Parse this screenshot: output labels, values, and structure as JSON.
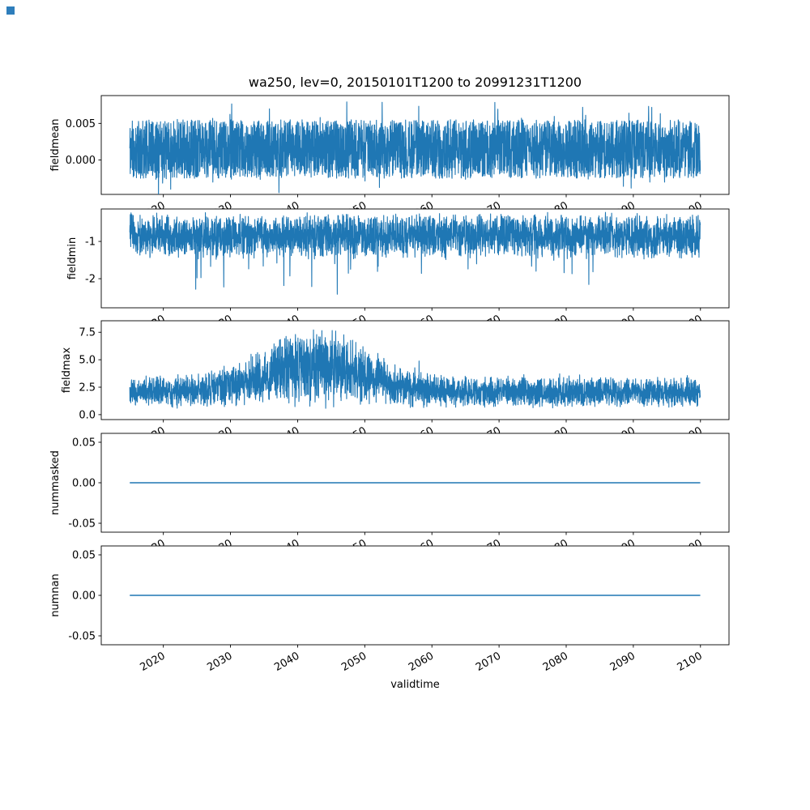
{
  "figure": {
    "title": "wa250, lev=0, 20150101T1200 to 20991231T1200",
    "xlabel": "validtime",
    "line_color": "#1f77b4",
    "background_color": "#ffffff",
    "corner_marker_color": "#2e7ebc",
    "x": {
      "lim": [
        2010.75,
        2104.25
      ],
      "ticks": [
        2020,
        2030,
        2040,
        2050,
        2060,
        2070,
        2080,
        2090,
        2100
      ],
      "tick_labels": [
        "2020",
        "2030",
        "2040",
        "2050",
        "2060",
        "2070",
        "2080",
        "2090",
        "2100"
      ],
      "tick_rotation_deg": 30
    }
  },
  "chart_data": {
    "type": "line",
    "title": "wa250, lev=0, 20150101T1200 to 20991231T1200",
    "xlabel": "validtime",
    "xlim": [
      2010.75,
      2104.25
    ],
    "xticks": [
      2020,
      2030,
      2040,
      2050,
      2060,
      2070,
      2080,
      2090,
      2100
    ],
    "xtick_labels": [
      "2020",
      "2030",
      "2040",
      "2050",
      "2060",
      "2070",
      "2080",
      "2090",
      "2100"
    ],
    "x_is_shared": true,
    "x_data_range": [
      2015.0,
      2099.97
    ],
    "legend": "none",
    "grid": false,
    "subplots": [
      {
        "ylabel": "fieldmean",
        "ylim": [
          -0.0047,
          0.0088
        ],
        "yticks": [
          0.005,
          0.0
        ],
        "ytick_labels": [
          "0.005",
          "0.000"
        ],
        "x_range": [
          2015.0,
          2099.97
        ],
        "summary": "Dense high-frequency noise around mean ~0.0015; bulk between -0.0035 and 0.0060; occasional extremes near -0.0045 and 0.0085; statistically stationary over 2015-2100",
        "gen": {
          "kind": "band",
          "seed": 11,
          "n": 3600,
          "base": 0.0015,
          "half": 0.004,
          "spike_p": 0.06,
          "spike_amp": 0.003
        }
      },
      {
        "ylabel": "fieldmin",
        "ylim": [
          -2.78,
          -0.13
        ],
        "yticks": [
          -1,
          -2
        ],
        "ytick_labels": [
          "-1",
          "-2"
        ],
        "x_range": [
          2015.0,
          2099.97
        ],
        "summary": "Dense noise mostly between -0.2 and -1.8, mean near -0.9, with sparse downward spikes reaching about -2.7",
        "gen": {
          "kind": "band_down",
          "seed": 22,
          "n": 3600,
          "base": -0.2,
          "depth": 1.3,
          "spike_p": 0.015,
          "spike_amp": 1.05
        }
      },
      {
        "ylabel": "fieldmax",
        "ylim": [
          -0.45,
          8.55
        ],
        "yticks": [
          7.5,
          5.0,
          2.5,
          0.0
        ],
        "ytick_labels": [
          "7.5",
          "5.0",
          "2.5",
          "0.0"
        ],
        "x_range": [
          2015.0,
          2099.97
        ],
        "summary": "Noisy positive series; baseline bursts 0.5-3.5 before ~2026 and after ~2058, elevated variance ~2028-2057 with peaks up to ~8 (maximum near 2052)",
        "gen": {
          "kind": "envelope",
          "seed": 33,
          "n": 3600,
          "base": 0.55,
          "a0": 3.0,
          "a1": 4.8,
          "c": 2042.5,
          "w": 10.5,
          "spike_p": 0.02,
          "spike_amp": 1.1
        }
      },
      {
        "ylabel": "nummasked",
        "ylim": [
          -0.061,
          0.061
        ],
        "yticks": [
          0.05,
          0.0,
          -0.05
        ],
        "ytick_labels": [
          "0.05",
          "0.00",
          "-0.05"
        ],
        "x_range": [
          2015.0,
          2099.97
        ],
        "summary": "Constant value 0.00 across the full period 2015-2100 (flat line)",
        "gen": {
          "kind": "flat",
          "seed": 44,
          "n": 2,
          "value": 0.0
        }
      },
      {
        "ylabel": "numnan",
        "ylim": [
          -0.061,
          0.061
        ],
        "yticks": [
          0.05,
          0.0,
          -0.05
        ],
        "ytick_labels": [
          "0.05",
          "0.00",
          "-0.05"
        ],
        "x_range": [
          2015.0,
          2099.97
        ],
        "summary": "Constant value 0.00 across the full period 2015-2100 (flat line)",
        "gen": {
          "kind": "flat",
          "seed": 55,
          "n": 2,
          "value": 0.0
        }
      }
    ]
  }
}
